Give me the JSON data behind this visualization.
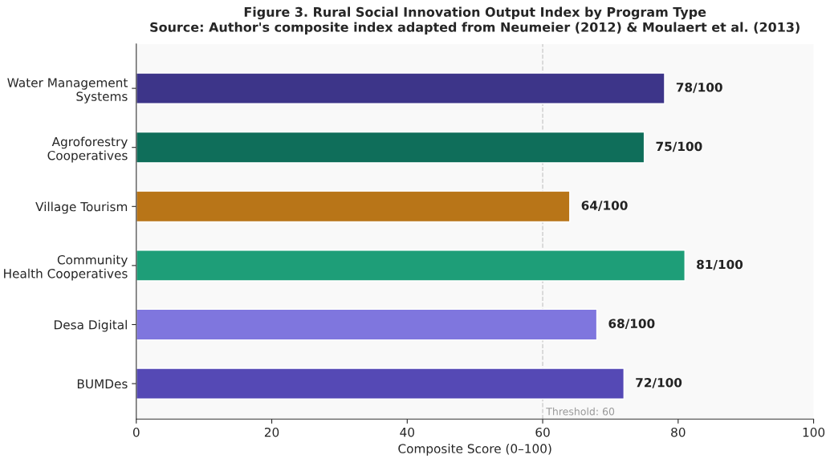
{
  "chart_data": {
    "type": "bar",
    "orientation": "horizontal",
    "title": "Figure 3. Rural Social Innovation Output Index by Program Type",
    "subtitle": "Source: Author's composite index adapted from Neumeier (2012) & Moulaert et al. (2013)",
    "xlabel": "Composite Score (0–100)",
    "categories": [
      "Water Management\nSystems",
      "Agroforestry\nCooperatives",
      "Village Tourism",
      "Community\nHealth Cooperatives",
      "Desa Digital",
      "BUMDes"
    ],
    "values": [
      78,
      75,
      64,
      81,
      68,
      72
    ],
    "colors": [
      "#3d3589",
      "#0f6e5a",
      "#b87518",
      "#1e9e78",
      "#7f76de",
      "#5549b5"
    ],
    "value_labels": [
      "78/100",
      "75/100",
      "64/100",
      "81/100",
      "68/100",
      "72/100"
    ],
    "xlim": [
      0,
      100
    ],
    "xticks": [
      0,
      20,
      40,
      60,
      80,
      100
    ],
    "ref_lines": [
      {
        "axis": "x",
        "value": 60,
        "label": "Threshold: 60",
        "color": "#cccccc",
        "line_style": "dashed"
      }
    ],
    "grid": false,
    "legend": false
  }
}
